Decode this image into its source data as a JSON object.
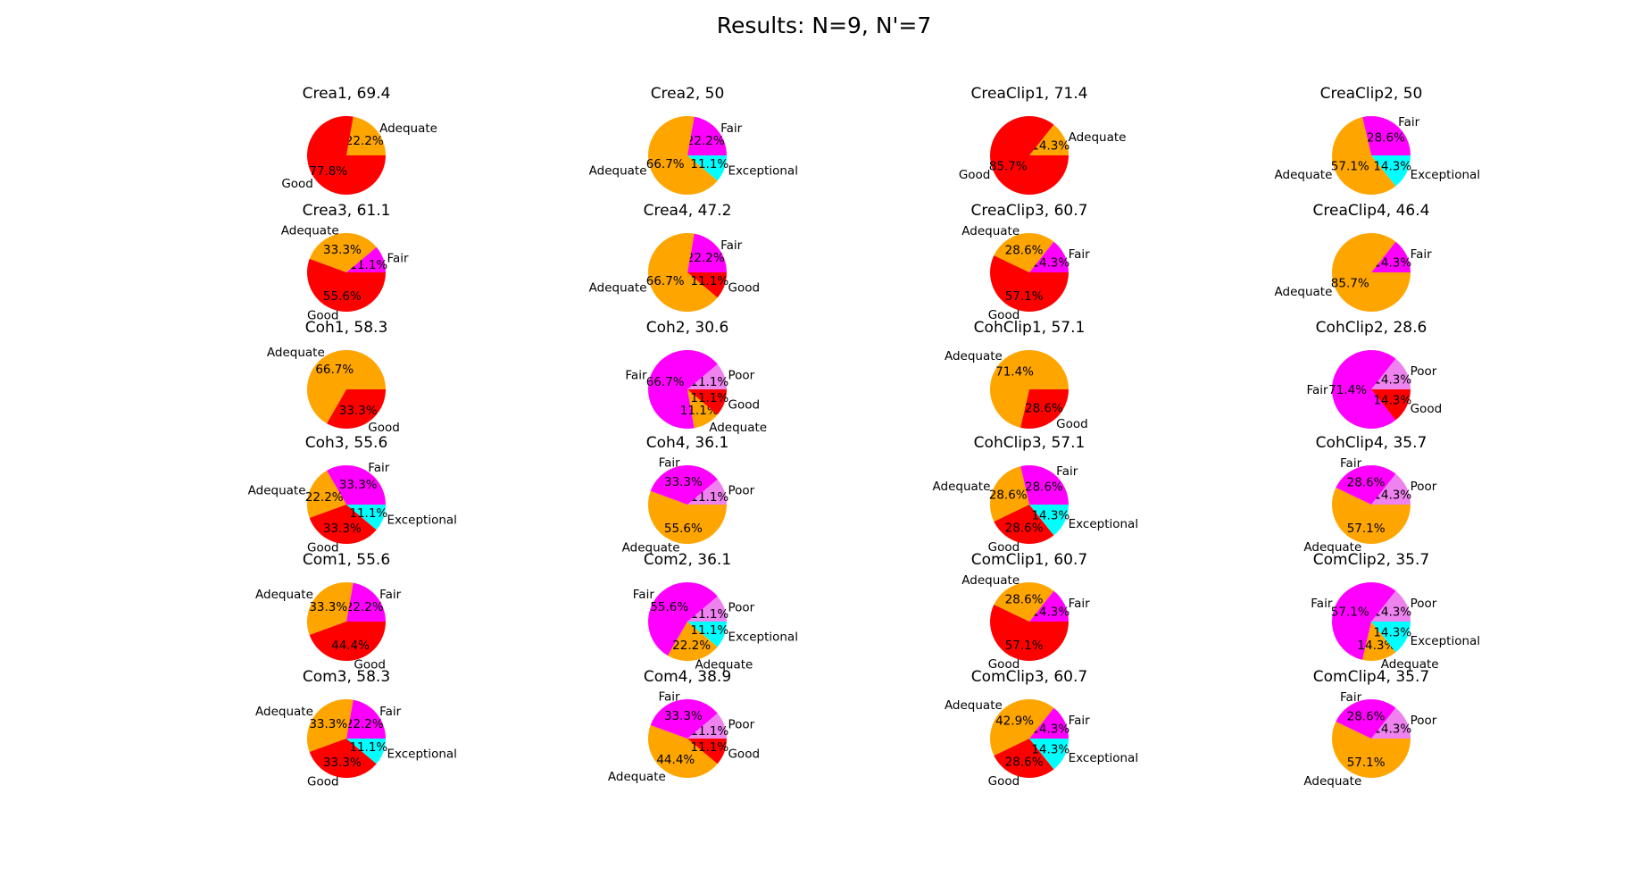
{
  "title": "Results: N=9, N'=7",
  "colors": {
    "Good": "#ff0000",
    "Adequate": "#ffa500",
    "Fair": "#ff00ff",
    "Exceptional": "#00ffff",
    "Poor": "#ee82ee"
  },
  "chart_data": [
    {
      "type": "pie",
      "title": "Crea1, 69.4",
      "slices": [
        {
          "label": "Adequate",
          "value": 22.2,
          "pct": "22.2%"
        },
        {
          "label": "Good",
          "value": 77.8,
          "pct": "77.8%"
        }
      ]
    },
    {
      "type": "pie",
      "title": "Crea2, 50",
      "slices": [
        {
          "label": "Fair",
          "value": 22.2,
          "pct": "22.2%"
        },
        {
          "label": "Adequate",
          "value": 66.7,
          "pct": "66.7%"
        },
        {
          "label": "Exceptional",
          "value": 11.1,
          "pct": "11.1%"
        }
      ]
    },
    {
      "type": "pie",
      "title": "CreaClip1, 71.4",
      "slices": [
        {
          "label": "Adequate",
          "value": 14.3,
          "pct": "14.3%"
        },
        {
          "label": "Good",
          "value": 85.7,
          "pct": "85.7%"
        }
      ]
    },
    {
      "type": "pie",
      "title": "CreaClip2, 50",
      "slices": [
        {
          "label": "Fair",
          "value": 28.6,
          "pct": "28.6%"
        },
        {
          "label": "Adequate",
          "value": 57.1,
          "pct": "57.1%"
        },
        {
          "label": "Exceptional",
          "value": 14.3,
          "pct": "14.3%"
        }
      ]
    },
    {
      "type": "pie",
      "title": "Crea3, 61.1",
      "slices": [
        {
          "label": "Fair",
          "value": 11.1,
          "pct": "11.1%"
        },
        {
          "label": "Adequate",
          "value": 33.3,
          "pct": "33.3%"
        },
        {
          "label": "Good",
          "value": 55.6,
          "pct": "55.6%"
        }
      ]
    },
    {
      "type": "pie",
      "title": "Crea4, 47.2",
      "slices": [
        {
          "label": "Fair",
          "value": 22.2,
          "pct": "22.2%"
        },
        {
          "label": "Adequate",
          "value": 66.7,
          "pct": "66.7%"
        },
        {
          "label": "Good",
          "value": 11.1,
          "pct": "11.1%"
        }
      ]
    },
    {
      "type": "pie",
      "title": "CreaClip3, 60.7",
      "slices": [
        {
          "label": "Fair",
          "value": 14.3,
          "pct": "14.3%"
        },
        {
          "label": "Adequate",
          "value": 28.6,
          "pct": "28.6%"
        },
        {
          "label": "Good",
          "value": 57.1,
          "pct": "57.1%"
        }
      ]
    },
    {
      "type": "pie",
      "title": "CreaClip4, 46.4",
      "slices": [
        {
          "label": "Fair",
          "value": 14.3,
          "pct": "14.3%"
        },
        {
          "label": "Adequate",
          "value": 85.7,
          "pct": "85.7%"
        }
      ]
    },
    {
      "type": "pie",
      "title": "Coh1, 58.3",
      "slices": [
        {
          "label": "Adequate",
          "value": 66.7,
          "pct": "66.7%"
        },
        {
          "label": "Good",
          "value": 33.3,
          "pct": "33.3%"
        }
      ]
    },
    {
      "type": "pie",
      "title": "Coh2, 30.6",
      "slices": [
        {
          "label": "Poor",
          "value": 11.1,
          "pct": "11.1%"
        },
        {
          "label": "Fair",
          "value": 66.7,
          "pct": "66.7%"
        },
        {
          "label": "Adequate",
          "value": 11.1,
          "pct": "11.1%"
        },
        {
          "label": "Good",
          "value": 11.1,
          "pct": "11.1%"
        }
      ]
    },
    {
      "type": "pie",
      "title": "CohClip1, 57.1",
      "slices": [
        {
          "label": "Adequate",
          "value": 71.4,
          "pct": "71.4%"
        },
        {
          "label": "Good",
          "value": 28.6,
          "pct": "28.6%"
        }
      ]
    },
    {
      "type": "pie",
      "title": "CohClip2, 28.6",
      "slices": [
        {
          "label": "Poor",
          "value": 14.3,
          "pct": "14.3%"
        },
        {
          "label": "Fair",
          "value": 71.4,
          "pct": "71.4%"
        },
        {
          "label": "Good",
          "value": 14.3,
          "pct": "14.3%"
        }
      ]
    },
    {
      "type": "pie",
      "title": "Coh3, 55.6",
      "slices": [
        {
          "label": "Fair",
          "value": 33.3,
          "pct": "33.3%"
        },
        {
          "label": "Adequate",
          "value": 22.2,
          "pct": "22.2%"
        },
        {
          "label": "Good",
          "value": 33.3,
          "pct": "33.3%"
        },
        {
          "label": "Exceptional",
          "value": 11.1,
          "pct": "11.1%"
        }
      ]
    },
    {
      "type": "pie",
      "title": "Coh4, 36.1",
      "slices": [
        {
          "label": "Poor",
          "value": 11.1,
          "pct": "11.1%"
        },
        {
          "label": "Fair",
          "value": 33.3,
          "pct": "33.3%"
        },
        {
          "label": "Adequate",
          "value": 55.6,
          "pct": "55.6%"
        }
      ]
    },
    {
      "type": "pie",
      "title": "CohClip3, 57.1",
      "slices": [
        {
          "label": "Fair",
          "value": 28.6,
          "pct": "28.6%"
        },
        {
          "label": "Adequate",
          "value": 28.6,
          "pct": "28.6%"
        },
        {
          "label": "Good",
          "value": 28.6,
          "pct": "28.6%"
        },
        {
          "label": "Exceptional",
          "value": 14.3,
          "pct": "14.3%"
        }
      ]
    },
    {
      "type": "pie",
      "title": "CohClip4, 35.7",
      "slices": [
        {
          "label": "Poor",
          "value": 14.3,
          "pct": "14.3%"
        },
        {
          "label": "Fair",
          "value": 28.6,
          "pct": "28.6%"
        },
        {
          "label": "Adequate",
          "value": 57.1,
          "pct": "57.1%"
        }
      ]
    },
    {
      "type": "pie",
      "title": "Com1, 55.6",
      "slices": [
        {
          "label": "Fair",
          "value": 22.2,
          "pct": "22.2%"
        },
        {
          "label": "Adequate",
          "value": 33.3,
          "pct": "33.3%"
        },
        {
          "label": "Good",
          "value": 44.4,
          "pct": "44.4%"
        }
      ]
    },
    {
      "type": "pie",
      "title": "Com2, 36.1",
      "slices": [
        {
          "label": "Poor",
          "value": 11.1,
          "pct": "11.1%"
        },
        {
          "label": "Fair",
          "value": 55.6,
          "pct": "55.6%"
        },
        {
          "label": "Adequate",
          "value": 22.2,
          "pct": "22.2%"
        },
        {
          "label": "Exceptional",
          "value": 11.1,
          "pct": "11.1%"
        }
      ]
    },
    {
      "type": "pie",
      "title": "ComClip1, 60.7",
      "slices": [
        {
          "label": "Fair",
          "value": 14.3,
          "pct": "14.3%"
        },
        {
          "label": "Adequate",
          "value": 28.6,
          "pct": "28.6%"
        },
        {
          "label": "Good",
          "value": 57.1,
          "pct": "57.1%"
        }
      ]
    },
    {
      "type": "pie",
      "title": "ComClip2, 35.7",
      "slices": [
        {
          "label": "Poor",
          "value": 14.3,
          "pct": "14.3%"
        },
        {
          "label": "Fair",
          "value": 57.1,
          "pct": "57.1%"
        },
        {
          "label": "Adequate",
          "value": 14.3,
          "pct": "14.3%"
        },
        {
          "label": "Exceptional",
          "value": 14.3,
          "pct": "14.3%"
        }
      ]
    },
    {
      "type": "pie",
      "title": "Com3, 58.3",
      "slices": [
        {
          "label": "Fair",
          "value": 22.2,
          "pct": "22.2%"
        },
        {
          "label": "Adequate",
          "value": 33.3,
          "pct": "33.3%"
        },
        {
          "label": "Good",
          "value": 33.3,
          "pct": "33.3%"
        },
        {
          "label": "Exceptional",
          "value": 11.1,
          "pct": "11.1%"
        }
      ]
    },
    {
      "type": "pie",
      "title": "Com4, 38.9",
      "slices": [
        {
          "label": "Poor",
          "value": 11.1,
          "pct": "11.1%"
        },
        {
          "label": "Fair",
          "value": 33.3,
          "pct": "33.3%"
        },
        {
          "label": "Adequate",
          "value": 44.4,
          "pct": "44.4%"
        },
        {
          "label": "Good",
          "value": 11.1,
          "pct": "11.1%"
        }
      ]
    },
    {
      "type": "pie",
      "title": "ComClip3, 60.7",
      "slices": [
        {
          "label": "Fair",
          "value": 14.3,
          "pct": "14.3%"
        },
        {
          "label": "Adequate",
          "value": 42.9,
          "pct": "42.9%"
        },
        {
          "label": "Good",
          "value": 28.6,
          "pct": "28.6%"
        },
        {
          "label": "Exceptional",
          "value": 14.3,
          "pct": "14.3%"
        }
      ]
    },
    {
      "type": "pie",
      "title": "ComClip4, 35.7",
      "slices": [
        {
          "label": "Poor",
          "value": 14.3,
          "pct": "14.3%"
        },
        {
          "label": "Fair",
          "value": 28.6,
          "pct": "28.6%"
        },
        {
          "label": "Adequate",
          "value": 57.1,
          "pct": "57.1%"
        }
      ]
    }
  ]
}
